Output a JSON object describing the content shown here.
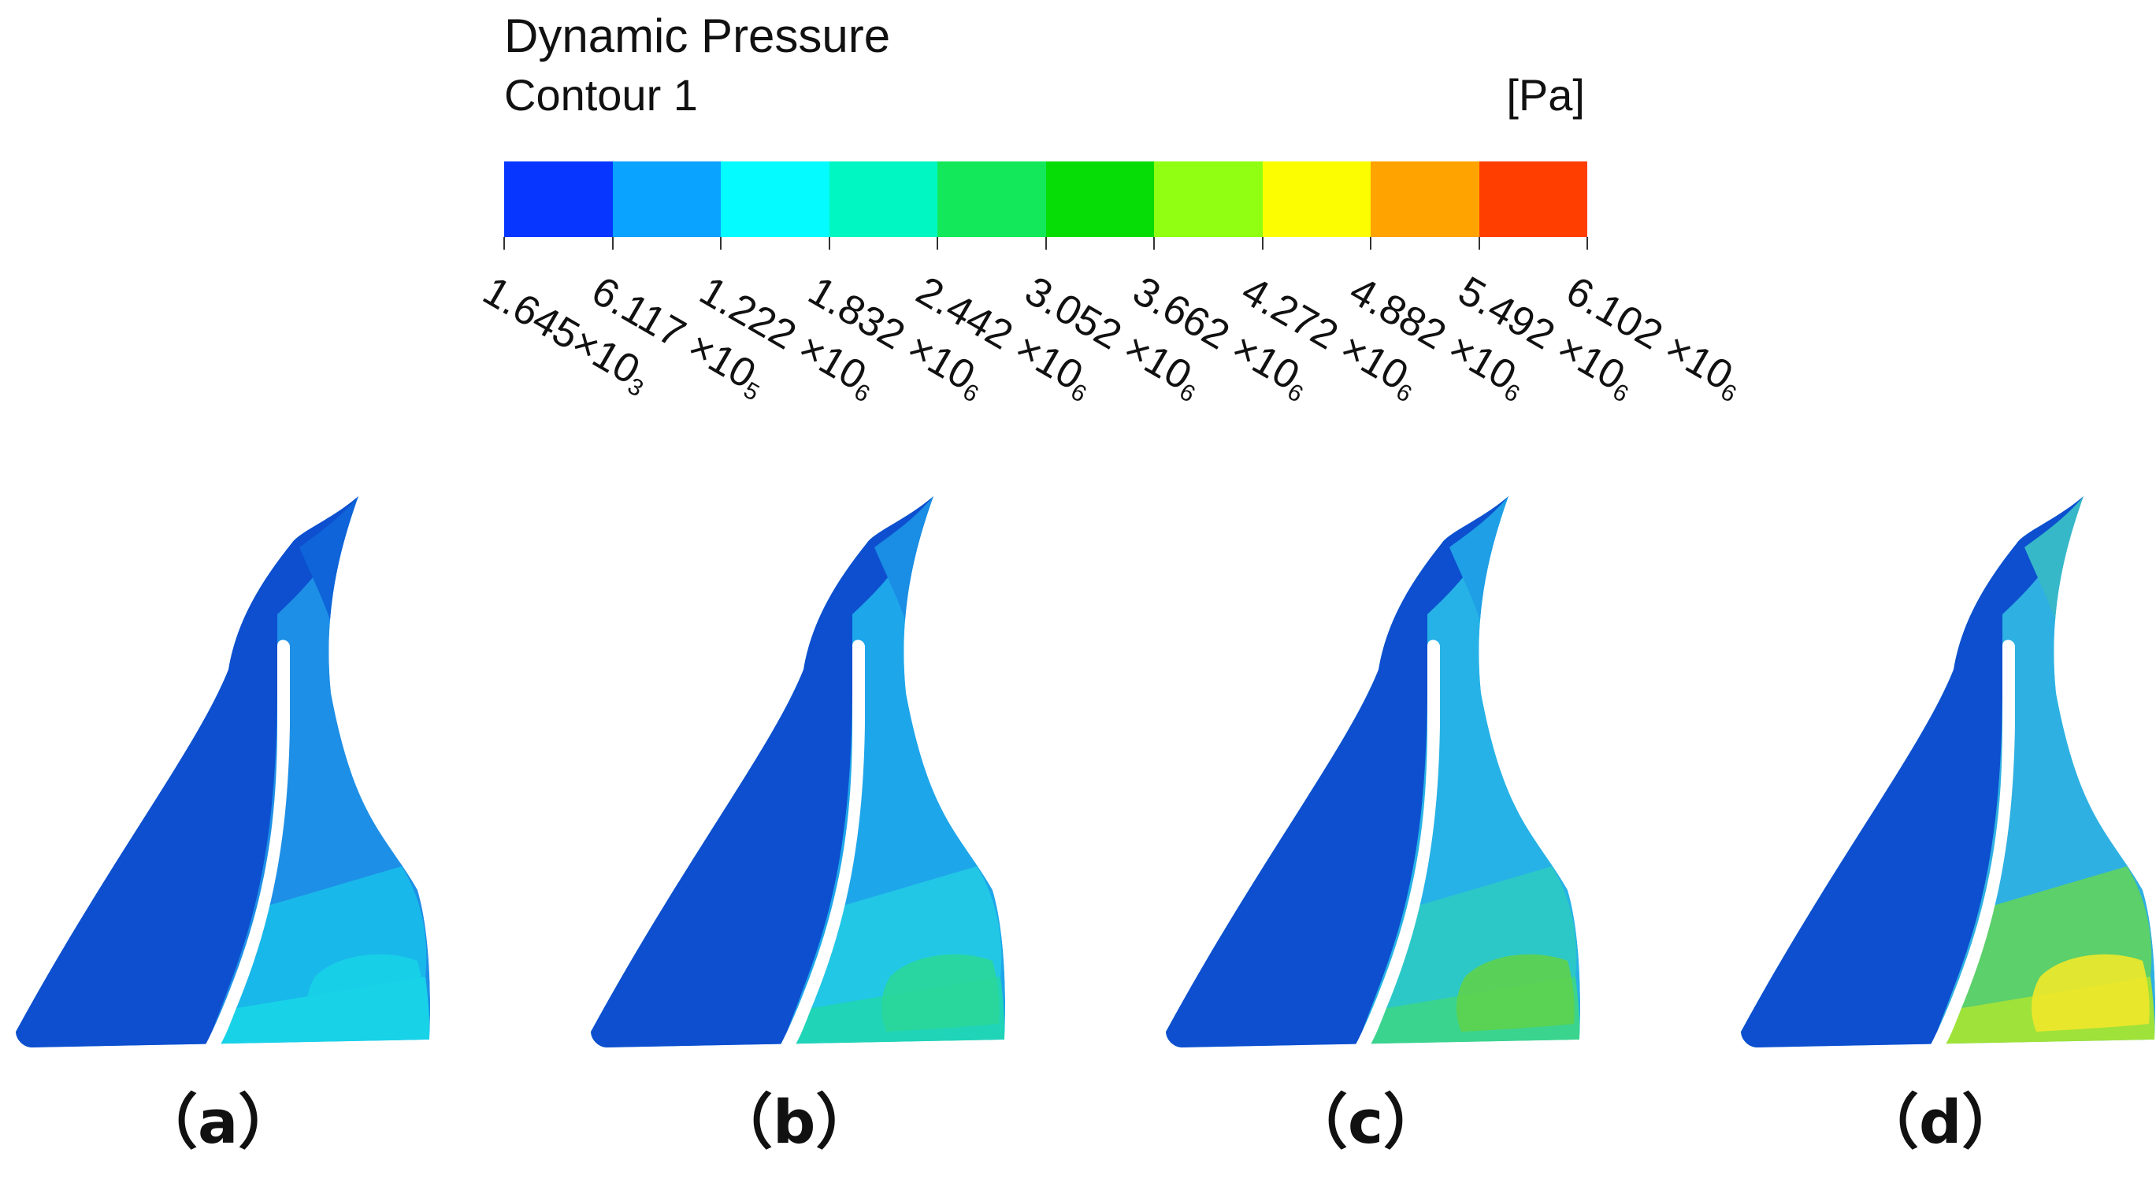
{
  "legend": {
    "title": "Dynamic Pressure",
    "subtitle": "Contour 1",
    "unit": "[Pa]",
    "colors": [
      "#0636ff",
      "#0aa3ff",
      "#04fbff",
      "#00f7c2",
      "#12e85a",
      "#06dd06",
      "#91ff12",
      "#fbfd00",
      "#ffa300",
      "#ff3e00"
    ],
    "ticks": [
      {
        "mantissa": "1.645",
        "times": "×10",
        "exp": "3"
      },
      {
        "mantissa": "6.117",
        "times": " ×10",
        "exp": "5"
      },
      {
        "mantissa": "1.222",
        "times": " ×10",
        "exp": "6"
      },
      {
        "mantissa": "1.832",
        "times": " ×10",
        "exp": "6"
      },
      {
        "mantissa": "2.442",
        "times": " ×10",
        "exp": "6"
      },
      {
        "mantissa": "3.052",
        "times": " ×10",
        "exp": "6"
      },
      {
        "mantissa": "3.662",
        "times": " ×10",
        "exp": "6"
      },
      {
        "mantissa": "4.272",
        "times": " ×10",
        "exp": "6"
      },
      {
        "mantissa": "4.882",
        "times": " ×10",
        "exp": "6"
      },
      {
        "mantissa": "5.492",
        "times": " ×10",
        "exp": "6"
      },
      {
        "mantissa": "6.102",
        "times": " ×10",
        "exp": "6"
      }
    ]
  },
  "panels": [
    {
      "label": "（a）",
      "colors": {
        "left": "#0d4fcf",
        "tip": "#0e64d8",
        "right_top": "#1e8fe6",
        "right_mid": "#19b8ea",
        "right_bottom": "#18d2e8",
        "hot": "#18d2e8"
      }
    },
    {
      "label": "（b）",
      "colors": {
        "left": "#0d4fcf",
        "tip": "#1a8de4",
        "right_top": "#1ea6ea",
        "right_mid": "#22c7e6",
        "right_bottom": "#20d4b8",
        "hot": "#2ad79a"
      }
    },
    {
      "label": "（c）",
      "colors": {
        "left": "#0d4fcf",
        "tip": "#1f9fe6",
        "right_top": "#26b2e6",
        "right_mid": "#2cc8c8",
        "right_bottom": "#3bd48e",
        "hot": "#5ed24c"
      }
    },
    {
      "label": "（d）",
      "colors": {
        "left": "#0d4fcf",
        "tip": "#36b8c8",
        "right_top": "#2fb0e2",
        "right_mid": "#5cd06a",
        "right_bottom": "#9ee23a",
        "hot": "#f0e82a"
      }
    }
  ]
}
